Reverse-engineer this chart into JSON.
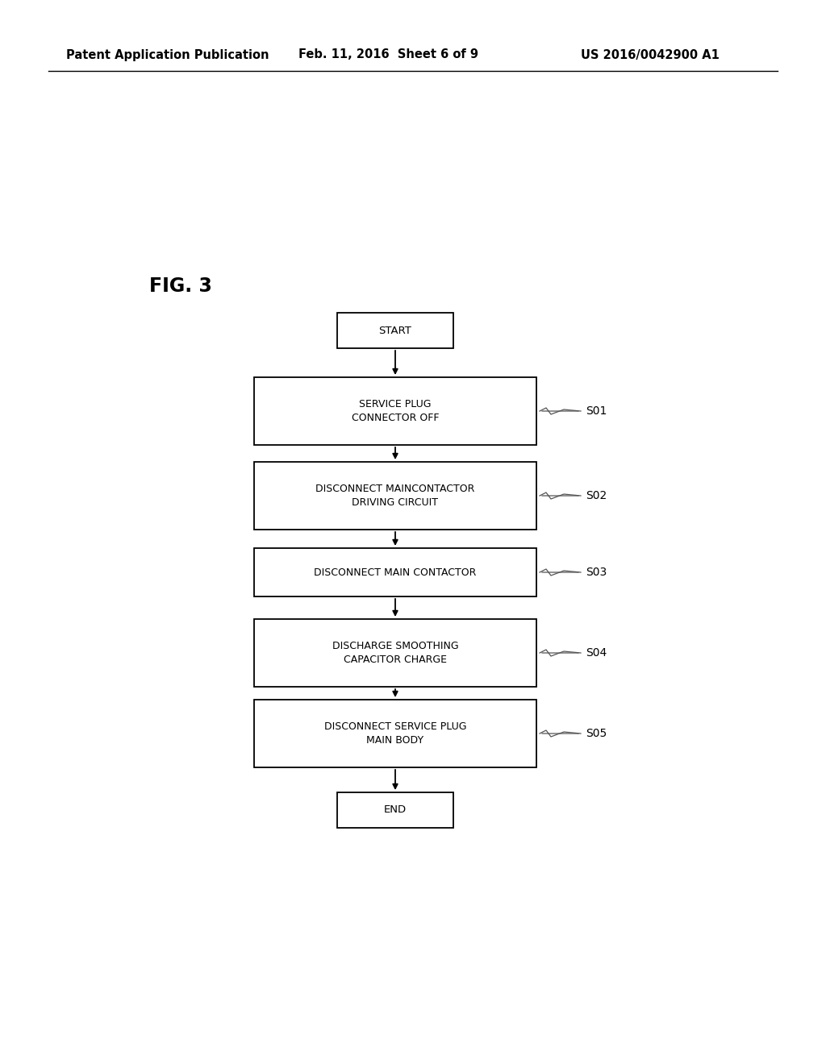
{
  "bg_color": "#ffffff",
  "header_left": "Patent Application Publication",
  "header_mid": "Feb. 11, 2016  Sheet 6 of 9",
  "header_right": "US 2016/0042900 A1",
  "fig_label": "FIG. 3",
  "start_label": "START",
  "end_label": "END",
  "steps": [
    {
      "label": "SERVICE PLUG\nCONNECTOR OFF",
      "step_id": "S01"
    },
    {
      "label": "DISCONNECT MAINCONTACTOR\nDRIVING CIRCUIT",
      "step_id": "S02"
    },
    {
      "label": "DISCONNECT MAIN CONTACTOR",
      "step_id": "S03"
    },
    {
      "label": "DISCHARGE SMOOTHING\nCAPACITOR CHARGE",
      "step_id": "S04"
    },
    {
      "label": "DISCONNECT SERVICE PLUG\nMAIN BODY",
      "step_id": "S05"
    }
  ],
  "text_color": "#000000",
  "font_size_header": 10.5,
  "font_size_fig": 17,
  "font_size_step": 9,
  "font_size_step_id": 10,
  "font_size_terminal": 9.5
}
